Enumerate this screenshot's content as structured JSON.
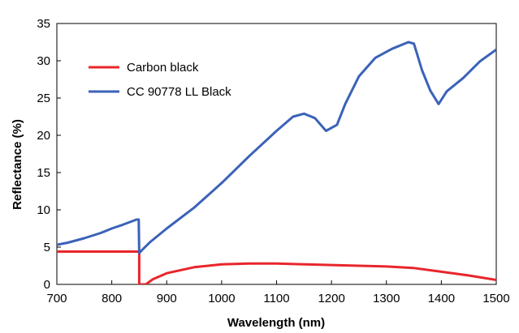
{
  "chart_data": {
    "type": "line",
    "title": "",
    "xlabel": "Wavelength (nm)",
    "ylabel": "Reflectance (%)",
    "xlim": [
      700,
      1500
    ],
    "ylim": [
      0,
      35
    ],
    "xticks": [
      700,
      800,
      900,
      1000,
      1100,
      1200,
      1300,
      1400,
      1500
    ],
    "yticks": [
      0,
      5,
      10,
      15,
      20,
      25,
      30,
      35
    ],
    "grid": false,
    "legend_position": "top-left",
    "series": [
      {
        "name": "Carbon black",
        "color": "#e8262b",
        "points": [
          [
            700,
            4.4
          ],
          [
            750,
            4.4
          ],
          [
            800,
            4.4
          ],
          [
            850,
            4.4
          ],
          [
            850,
            0.0
          ],
          [
            862,
            0.0
          ],
          [
            875,
            0.7
          ],
          [
            900,
            1.5
          ],
          [
            950,
            2.3
          ],
          [
            1000,
            2.7
          ],
          [
            1050,
            2.8
          ],
          [
            1100,
            2.8
          ],
          [
            1150,
            2.7
          ],
          [
            1200,
            2.6
          ],
          [
            1250,
            2.5
          ],
          [
            1300,
            2.4
          ],
          [
            1350,
            2.2
          ],
          [
            1400,
            1.7
          ],
          [
            1450,
            1.2
          ],
          [
            1500,
            0.6
          ]
        ]
      },
      {
        "name": "CC 90778 LL Black",
        "color": "#3b62b8",
        "points": [
          [
            700,
            5.3
          ],
          [
            720,
            5.6
          ],
          [
            750,
            6.2
          ],
          [
            780,
            6.9
          ],
          [
            800,
            7.5
          ],
          [
            820,
            8.0
          ],
          [
            845,
            8.7
          ],
          [
            849,
            8.7
          ],
          [
            850,
            4.2
          ],
          [
            855,
            4.6
          ],
          [
            870,
            5.7
          ],
          [
            900,
            7.5
          ],
          [
            950,
            10.3
          ],
          [
            1000,
            13.6
          ],
          [
            1050,
            17.2
          ],
          [
            1100,
            20.6
          ],
          [
            1130,
            22.5
          ],
          [
            1150,
            22.9
          ],
          [
            1170,
            22.3
          ],
          [
            1190,
            20.6
          ],
          [
            1210,
            21.4
          ],
          [
            1225,
            24.2
          ],
          [
            1250,
            27.9
          ],
          [
            1280,
            30.4
          ],
          [
            1310,
            31.6
          ],
          [
            1340,
            32.5
          ],
          [
            1350,
            32.3
          ],
          [
            1365,
            28.7
          ],
          [
            1380,
            26.0
          ],
          [
            1395,
            24.2
          ],
          [
            1410,
            25.9
          ],
          [
            1440,
            27.7
          ],
          [
            1470,
            29.9
          ],
          [
            1500,
            31.5
          ]
        ]
      }
    ]
  }
}
